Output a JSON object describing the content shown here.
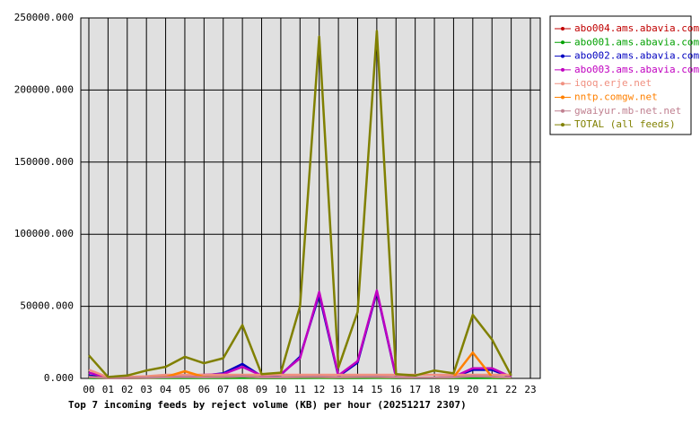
{
  "chart_data": {
    "type": "line",
    "title": "Top 7 incoming feeds by reject volume (KB) per hour (20251217 2307)",
    "categories": [
      "00",
      "01",
      "02",
      "03",
      "04",
      "05",
      "06",
      "07",
      "08",
      "09",
      "10",
      "11",
      "12",
      "13",
      "14",
      "15",
      "16",
      "17",
      "18",
      "19",
      "20",
      "21",
      "22",
      "23"
    ],
    "ylim": [
      0,
      250000
    ],
    "yticks": [
      {
        "value": 0,
        "label": "0.000"
      },
      {
        "value": 50000,
        "label": "50000.000"
      },
      {
        "value": 100000,
        "label": "100000.000"
      },
      {
        "value": 150000,
        "label": "150000.000"
      },
      {
        "value": 200000,
        "label": "200000.000"
      },
      {
        "value": 250000,
        "label": "250000.000"
      }
    ],
    "grid": true,
    "legend": "right",
    "series": [
      {
        "name": "abo004.ams.abavia.com",
        "color": "#c00000",
        "values": [
          500,
          300,
          300,
          400,
          500,
          500,
          500,
          500,
          600,
          400,
          400,
          500,
          600,
          400,
          500,
          600,
          400,
          300,
          300,
          400,
          500,
          500,
          300,
          null
        ]
      },
      {
        "name": "abo001.ams.abavia.com",
        "color": "#00a000",
        "values": [
          300,
          200,
          200,
          300,
          300,
          300,
          300,
          300,
          400,
          300,
          300,
          300,
          400,
          300,
          300,
          400,
          300,
          200,
          200,
          300,
          300,
          300,
          200,
          null
        ]
      },
      {
        "name": "abo002.ams.abavia.com",
        "color": "#0000c0",
        "values": [
          2000,
          300,
          300,
          800,
          1200,
          1500,
          2000,
          3500,
          10000,
          1500,
          2500,
          15000,
          58000,
          1500,
          11000,
          60000,
          800,
          400,
          400,
          800,
          6000,
          6000,
          800,
          null
        ]
      },
      {
        "name": "abo003.ams.abavia.com",
        "color": "#c000c0",
        "values": [
          4000,
          500,
          500,
          1000,
          1500,
          2000,
          2500,
          3000,
          8000,
          2000,
          3000,
          14000,
          60000,
          2000,
          12000,
          61000,
          1000,
          500,
          500,
          1000,
          7000,
          7000,
          1000,
          null
        ]
      },
      {
        "name": "iqoq.erje.net",
        "color": "#f09080",
        "values": [
          6000,
          800,
          1000,
          1500,
          2500,
          2500,
          2500,
          2500,
          2500,
          2500,
          2500,
          2500,
          2500,
          2500,
          2500,
          2500,
          2500,
          2500,
          2500,
          2500,
          2500,
          2500,
          2500,
          null
        ]
      },
      {
        "name": "nntp.comgw.net",
        "color": "#ff8000",
        "values": [
          1000,
          300,
          300,
          500,
          1000,
          5000,
          1000,
          1000,
          1500,
          800,
          800,
          1000,
          1000,
          800,
          1000,
          1000,
          800,
          500,
          500,
          800,
          18000,
          1000,
          500,
          null
        ]
      },
      {
        "name": "gwaiyur.mb-net.net",
        "color": "#c08090",
        "values": [
          1000,
          200,
          300,
          500,
          800,
          1000,
          800,
          1000,
          1500,
          800,
          800,
          1000,
          1200,
          800,
          1000,
          1200,
          800,
          500,
          500,
          800,
          1500,
          1200,
          500,
          null
        ]
      },
      {
        "name": "TOTAL (all feeds)",
        "color": "#808000",
        "values": [
          16000,
          1000,
          2000,
          5500,
          8000,
          15000,
          10500,
          14000,
          37000,
          3000,
          4000,
          50000,
          237000,
          7500,
          46000,
          241000,
          3000,
          2000,
          5500,
          3500,
          44000,
          27000,
          2000,
          null
        ]
      }
    ]
  }
}
